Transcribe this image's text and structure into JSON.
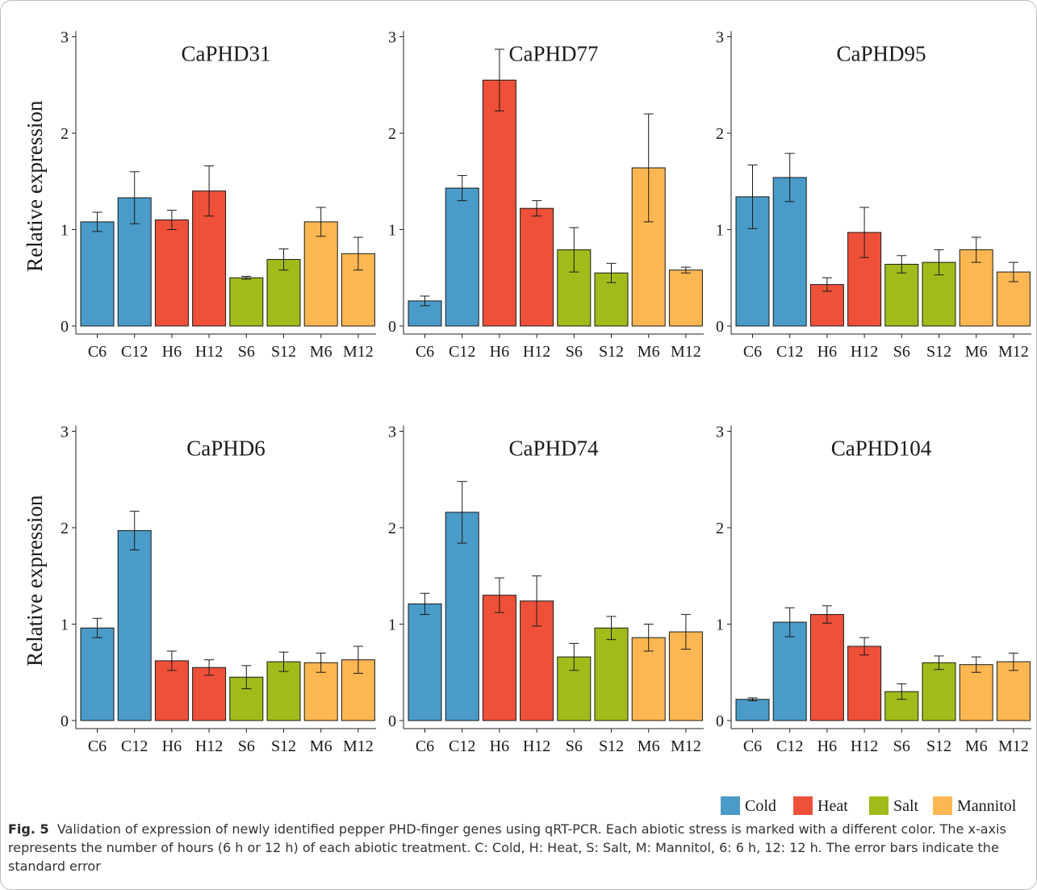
{
  "chart_data": {
    "type": "bar",
    "shared_ylabel": "Relative expression",
    "categories": [
      "C6",
      "C12",
      "H6",
      "H12",
      "S6",
      "S12",
      "M6",
      "M12"
    ],
    "category_groups": [
      "Cold",
      "Cold",
      "Heat",
      "Heat",
      "Salt",
      "Salt",
      "Mannitol",
      "Mannitol"
    ],
    "yticks": [
      "0",
      "1",
      "2",
      "3"
    ],
    "ylim": [
      0,
      3
    ],
    "grid": false,
    "legend": {
      "placement": "bottom-right",
      "entries": [
        {
          "name": "Cold",
          "color": "#4a9bc7"
        },
        {
          "name": "Heat",
          "color": "#ee5039"
        },
        {
          "name": "Salt",
          "color": "#a1bb1a"
        },
        {
          "name": "Mannitol",
          "color": "#fcb753"
        }
      ]
    },
    "panels": [
      {
        "title": "CaPHD31",
        "values": [
          1.08,
          1.33,
          1.1,
          1.4,
          0.5,
          0.69,
          1.08,
          0.75
        ],
        "errors": [
          0.1,
          0.27,
          0.1,
          0.26,
          0.015,
          0.11,
          0.15,
          0.17
        ]
      },
      {
        "title": "CaPHD77",
        "values": [
          0.26,
          1.43,
          2.55,
          1.22,
          0.79,
          0.55,
          1.64,
          0.58
        ],
        "errors": [
          0.05,
          0.13,
          0.32,
          0.08,
          0.23,
          0.1,
          0.56,
          0.03
        ]
      },
      {
        "title": "CaPHD95",
        "values": [
          1.34,
          1.54,
          0.43,
          0.97,
          0.64,
          0.66,
          0.79,
          0.56
        ],
        "errors": [
          0.33,
          0.25,
          0.07,
          0.26,
          0.09,
          0.13,
          0.13,
          0.1
        ]
      },
      {
        "title": "CaPHD6",
        "values": [
          0.96,
          1.97,
          0.62,
          0.55,
          0.45,
          0.61,
          0.6,
          0.63
        ],
        "errors": [
          0.1,
          0.2,
          0.1,
          0.08,
          0.12,
          0.1,
          0.1,
          0.14
        ]
      },
      {
        "title": "CaPHD74",
        "values": [
          1.21,
          2.16,
          1.3,
          1.24,
          0.66,
          0.96,
          0.86,
          0.92
        ],
        "errors": [
          0.11,
          0.32,
          0.18,
          0.26,
          0.14,
          0.12,
          0.14,
          0.18
        ]
      },
      {
        "title": "CaPHD104",
        "values": [
          0.22,
          1.02,
          1.1,
          0.77,
          0.3,
          0.6,
          0.58,
          0.61
        ],
        "errors": [
          0.015,
          0.15,
          0.09,
          0.09,
          0.08,
          0.07,
          0.08,
          0.09
        ]
      }
    ]
  },
  "caption": {
    "label": "Fig. 5",
    "text": "Validation of expression of newly identified pepper PHD-finger genes using qRT-PCR. Each abiotic stress is marked with a different color. The x-axis represents the number of hours (6 h or 12 h) of each abiotic treatment. C: Cold, H: Heat, S: Salt, M: Mannitol, 6: 6 h, 12: 12 h. The error bars indicate the standard error"
  }
}
